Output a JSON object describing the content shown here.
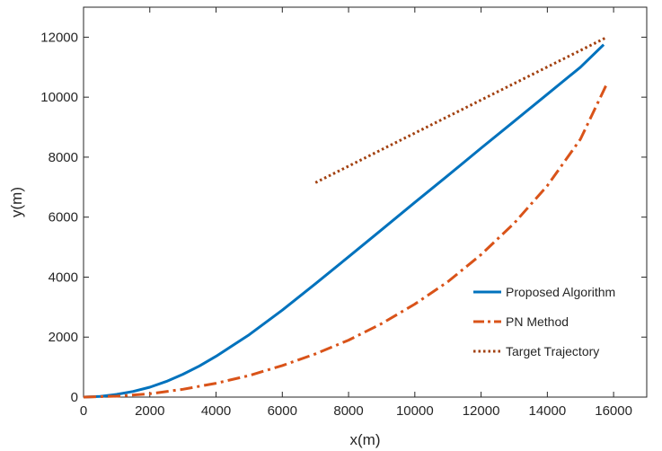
{
  "chart_data": {
    "type": "line",
    "title": "",
    "xlabel": "x(m)",
    "ylabel": "y(m)",
    "xlim": [
      0,
      17000
    ],
    "ylim": [
      0,
      13000
    ],
    "xticks": [
      0,
      2000,
      4000,
      6000,
      8000,
      10000,
      12000,
      14000,
      16000
    ],
    "yticks": [
      0,
      2000,
      4000,
      6000,
      8000,
      10000,
      12000
    ],
    "grid": false,
    "legend_position": "bottom-right",
    "series": [
      {
        "name": "Proposed Algorithm",
        "color": "#0072BD",
        "style": "solid",
        "x": [
          0,
          500,
          1000,
          1500,
          2000,
          2500,
          3000,
          3500,
          4000,
          5000,
          6000,
          7000,
          8000,
          9000,
          10000,
          11000,
          12000,
          13000,
          14000,
          15000,
          15700
        ],
        "y": [
          0,
          25,
          90,
          190,
          330,
          520,
          760,
          1040,
          1360,
          2080,
          2900,
          3780,
          4680,
          5580,
          6490,
          7390,
          8300,
          9200,
          10100,
          11000,
          11750
        ]
      },
      {
        "name": "PN Method",
        "color": "#D95319",
        "style": "dashdot",
        "x": [
          0,
          1000,
          2000,
          3000,
          4000,
          5000,
          6000,
          7000,
          8000,
          9000,
          10000,
          11000,
          12000,
          13000,
          14000,
          15000,
          15800
        ],
        "y": [
          0,
          30,
          110,
          260,
          460,
          720,
          1050,
          1440,
          1900,
          2450,
          3100,
          3850,
          4750,
          5800,
          7050,
          8600,
          10450
        ]
      },
      {
        "name": "Target Trajectory",
        "color": "#A2400F",
        "style": "dotted",
        "x": [
          7000,
          15800
        ],
        "y": [
          7150,
          12000
        ]
      }
    ]
  }
}
